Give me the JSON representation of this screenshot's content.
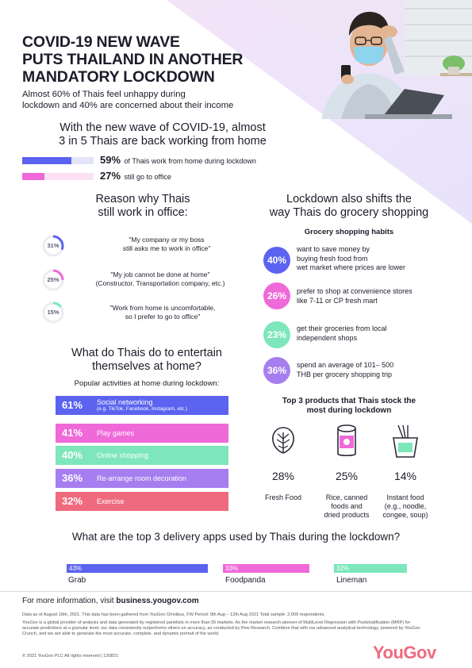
{
  "header": {
    "title_lines": [
      "COVID-19 NEW WAVE",
      "PUTS THAILAND IN ANOTHER",
      "MANDATORY LOCKDOWN"
    ],
    "subtitle_lines": [
      "Almost 60% of Thais feel unhappy during",
      "lockdown and 40% are concerned about their income"
    ]
  },
  "wfh": {
    "heading_lines": [
      "With the new wave of COVID-19, almost",
      "3 in 5 Thais are back working from home"
    ],
    "rows": [
      {
        "pct": "59%",
        "text": "of Thais work from home during lockdown",
        "color": "#5b63f0",
        "value": 59
      },
      {
        "pct": "27%",
        "text": "still go to office",
        "color": "#f069d9",
        "value": 27
      }
    ]
  },
  "office_reasons": {
    "heading_lines": [
      "Reason why Thais",
      "still work in office:"
    ],
    "items": [
      {
        "pct": "31%",
        "value": 31,
        "color": "#5b63f0",
        "quote_lines": [
          "\"My company or my boss",
          "still asks me to work in office\""
        ]
      },
      {
        "pct": "25%",
        "value": 25,
        "color": "#f069d9",
        "quote_lines": [
          "\"My job cannot be done at home\"",
          "(Constructor, Transportation company, etc.)"
        ]
      },
      {
        "pct": "15%",
        "value": 15,
        "color": "#7de6bb",
        "quote_lines": [
          "\"Work from home is uncomfortable,",
          "so I prefer to go to office\""
        ]
      }
    ]
  },
  "entertain": {
    "heading_lines": [
      "What do Thais do to entertain",
      "themselves at home?"
    ],
    "subheading": "Popular activities at home during lockdown:",
    "items": [
      {
        "pct": "61%",
        "label": "Social networking",
        "sub": "(e.g. TikTok, Facebook, Instagram, etc.)",
        "color": "#5b63f0",
        "text_color": "#ffffff"
      },
      {
        "pct": "41%",
        "label": "Play games",
        "sub": "",
        "color": "#f069d9",
        "text_color": "#ffffff"
      },
      {
        "pct": "40%",
        "label": "Online shopping",
        "sub": "",
        "color": "#7de6bb",
        "text_color": "#ffffff"
      },
      {
        "pct": "36%",
        "label": "Re-arrange room decoration",
        "sub": "",
        "color": "#a67ef0",
        "text_color": "#ffffff"
      },
      {
        "pct": "32%",
        "label": "Exercise",
        "sub": "",
        "color": "#f06a7e",
        "text_color": "#ffffff"
      }
    ]
  },
  "grocery": {
    "heading_lines": [
      "Lockdown also shifts the",
      "way Thais do grocery shopping"
    ],
    "subheading": "Grocery shopping habits",
    "items": [
      {
        "pct": "40%",
        "color": "#5b63f0",
        "lines": [
          "want to save money by",
          "buying fresh food from",
          "wet market where prices are lower"
        ]
      },
      {
        "pct": "26%",
        "color": "#f069d9",
        "lines": [
          "prefer to shop at convenience stores",
          "like 7-11 or CP fresh mart"
        ]
      },
      {
        "pct": "23%",
        "color": "#7de6bb",
        "lines": [
          "get their groceries from local",
          "independent shops"
        ]
      },
      {
        "pct": "36%",
        "color": "#a67ef0",
        "lines": [
          "spend an average of 101– 500",
          "THB per grocery shopping trip"
        ]
      }
    ]
  },
  "products": {
    "heading_lines": [
      "Top 3 products that Thais stock the",
      "most during lockdown"
    ],
    "items": [
      {
        "icon": "lettuce-icon",
        "pct": "28%",
        "lines": [
          "Fresh Food"
        ]
      },
      {
        "icon": "canned-food-icon",
        "pct": "25%",
        "lines": [
          "Rice, canned",
          "foods and",
          "dried products"
        ]
      },
      {
        "icon": "noodle-cup-icon",
        "pct": "14%",
        "lines": [
          "Instant food",
          "(e.g., noodle,",
          "congee, soup)"
        ]
      }
    ]
  },
  "delivery": {
    "heading": "What are the top 3 delivery apps used by Thais during the lockdown?",
    "apps": [
      {
        "pct": "43%",
        "value": 43,
        "name": "Grab",
        "color": "#5b63f0"
      },
      {
        "pct": "33%",
        "value": 33,
        "name": "Foodpanda",
        "color": "#f069d9"
      },
      {
        "pct": "32%",
        "value": 32,
        "name": "Lineman",
        "color": "#7de6bb"
      }
    ]
  },
  "footer": {
    "more_info_prefix": "For more information, visit ",
    "more_info_link": "business.yougov.com",
    "data_note": "Data as of August 16th, 2021. This data has been gathered from YouGov Omnibus, FW Period: 9th Aug – 12th Aug 2021 Total sample: 2,009 respondents.",
    "about_lines": [
      "YouGov is a global provider of analysis and data generated by registered panelists in more than 55 markets. As the market research pioneer of MultiLevel Regression with Poststratification (MRP) for",
      "accurate predictions at a granular level, our data consistently outperforms others on accuracy, as conducted by Pew Research. Combine that with our advanced analytical technology, powered by YouGov",
      "Crunch, and we are able to generate the most accurate, complete, and dynamic portrait of the world."
    ],
    "copyright": "© 2021 YouGov PLC All rights reserved | 130821",
    "logo": "YouGov",
    "logo_color": "#f06a7e"
  }
}
